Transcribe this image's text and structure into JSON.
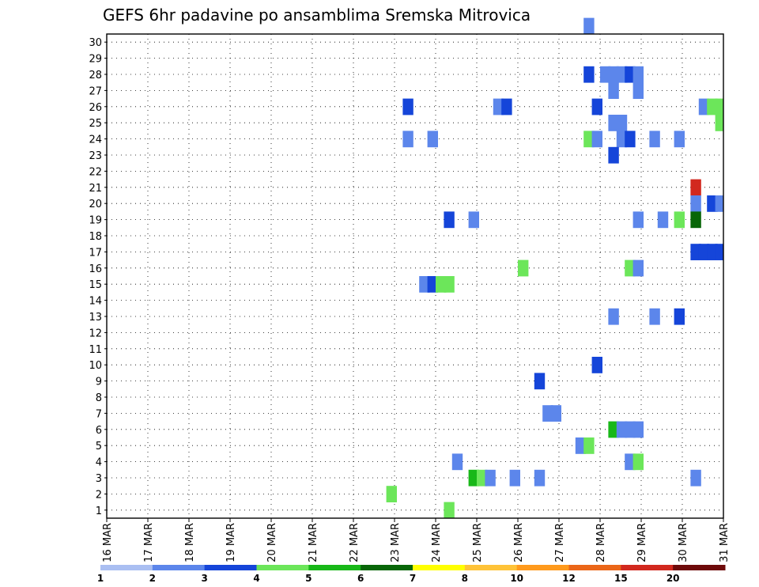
{
  "chart_data": {
    "type": "heatmap",
    "title": "GEFS 6hr padavine po ansamblima Sremska Mitrovica",
    "x_labels": [
      "16 MAR",
      "17 MAR",
      "18 MAR",
      "19 MAR",
      "20 MAR",
      "21 MAR",
      "22 MAR",
      "23 MAR",
      "24 MAR",
      "25 MAR",
      "26 MAR",
      "27 MAR",
      "28 MAR",
      "29 MAR",
      "30 MAR",
      "31 MAR"
    ],
    "x_step": "6hr",
    "y_labels": [
      "1",
      "2",
      "3",
      "4",
      "5",
      "6",
      "7",
      "8",
      "9",
      "10",
      "11",
      "12",
      "13",
      "14",
      "15",
      "16",
      "17",
      "18",
      "19",
      "20",
      "21",
      "22",
      "23",
      "24",
      "25",
      "26",
      "27",
      "28",
      "29",
      "30"
    ],
    "grid": true,
    "colorbar": {
      "labels": [
        "1",
        "2",
        "3",
        "4",
        "5",
        "6",
        "7",
        "8",
        "10",
        "12",
        "15",
        "20"
      ],
      "colors": [
        "#aabff2",
        "#5c86eb",
        "#1545d9",
        "#6ce65a",
        "#18b818",
        "#086608",
        "#ffff00",
        "#ffc338",
        "#ff9a1c",
        "#eb6618",
        "#d2281e",
        "#6e0a0a"
      ]
    },
    "cells": [
      [
        11.6,
        30,
        1
      ],
      [
        11.6,
        27,
        2
      ],
      [
        12.0,
        27,
        1
      ],
      [
        12.2,
        27,
        1
      ],
      [
        12.4,
        27,
        1
      ],
      [
        12.6,
        27,
        2
      ],
      [
        12.8,
        27,
        1
      ],
      [
        12.2,
        26,
        1
      ],
      [
        12.8,
        26,
        1
      ],
      [
        16.0,
        26,
        2
      ],
      [
        16.6,
        26,
        2
      ],
      [
        7.2,
        25,
        2
      ],
      [
        9.4,
        25,
        1
      ],
      [
        9.6,
        25,
        2
      ],
      [
        11.8,
        25,
        2
      ],
      [
        14.4,
        25,
        1
      ],
      [
        14.6,
        25,
        3
      ],
      [
        14.8,
        25,
        3
      ],
      [
        16.6,
        25,
        9
      ],
      [
        12.2,
        24,
        1
      ],
      [
        12.4,
        24,
        1
      ],
      [
        14.8,
        24,
        3
      ],
      [
        15.0,
        24,
        1
      ],
      [
        15.2,
        24,
        1
      ],
      [
        15.4,
        24,
        1
      ],
      [
        7.2,
        23,
        1
      ],
      [
        7.8,
        23,
        1
      ],
      [
        11.6,
        23,
        3
      ],
      [
        11.8,
        23,
        1
      ],
      [
        12.4,
        23,
        1
      ],
      [
        12.6,
        23,
        2
      ],
      [
        13.2,
        23,
        1
      ],
      [
        13.8,
        23,
        1
      ],
      [
        12.2,
        22,
        2
      ],
      [
        15.8,
        21,
        1
      ],
      [
        14.2,
        20,
        10
      ],
      [
        14.2,
        19,
        1
      ],
      [
        14.6,
        19,
        2
      ],
      [
        14.8,
        19,
        1
      ],
      [
        8.2,
        18,
        2
      ],
      [
        8.8,
        18,
        1
      ],
      [
        12.8,
        18,
        1
      ],
      [
        13.4,
        18,
        1
      ],
      [
        13.8,
        18,
        3
      ],
      [
        14.2,
        18,
        5
      ],
      [
        15.2,
        17,
        4
      ],
      [
        14.2,
        16,
        2
      ],
      [
        14.4,
        16,
        2
      ],
      [
        14.6,
        16,
        2
      ],
      [
        14.8,
        16,
        2
      ],
      [
        10.0,
        15,
        3
      ],
      [
        12.6,
        15,
        3
      ],
      [
        12.8,
        15,
        1
      ],
      [
        15.8,
        15,
        1
      ],
      [
        16.0,
        15,
        3
      ],
      [
        7.6,
        14,
        1
      ],
      [
        7.8,
        14,
        2
      ],
      [
        8.0,
        14,
        3
      ],
      [
        8.2,
        14,
        3
      ],
      [
        15.0,
        13,
        1
      ],
      [
        17.0,
        13,
        1
      ],
      [
        12.2,
        12,
        1
      ],
      [
        13.2,
        12,
        1
      ],
      [
        13.8,
        12,
        2
      ],
      [
        15.8,
        12,
        2
      ],
      [
        16.4,
        10,
        2
      ],
      [
        11.8,
        9,
        2
      ],
      [
        10.4,
        8,
        2
      ],
      [
        17.0,
        7,
        3
      ],
      [
        10.6,
        6,
        1
      ],
      [
        10.8,
        6,
        1
      ],
      [
        15.2,
        6,
        2
      ],
      [
        16.6,
        6,
        1
      ],
      [
        12.2,
        5,
        4
      ],
      [
        12.4,
        5,
        1
      ],
      [
        12.6,
        5,
        1
      ],
      [
        12.8,
        5,
        1
      ],
      [
        11.4,
        4,
        1
      ],
      [
        11.6,
        4,
        3
      ],
      [
        8.4,
        3,
        1
      ],
      [
        12.6,
        3,
        1
      ],
      [
        12.8,
        3,
        3
      ],
      [
        16.0,
        3,
        1
      ],
      [
        16.2,
        3,
        1
      ],
      [
        16.4,
        3,
        10
      ],
      [
        16.6,
        3,
        6
      ],
      [
        8.8,
        2,
        4
      ],
      [
        9.0,
        2,
        3
      ],
      [
        9.2,
        2,
        1
      ],
      [
        9.8,
        2,
        1
      ],
      [
        10.4,
        2,
        1
      ],
      [
        14.2,
        2,
        1
      ],
      [
        15.4,
        2,
        10
      ],
      [
        15.6,
        2,
        5
      ],
      [
        15.8,
        2,
        1
      ],
      [
        6.8,
        1,
        3
      ],
      [
        8.2,
        0,
        3
      ]
    ]
  }
}
